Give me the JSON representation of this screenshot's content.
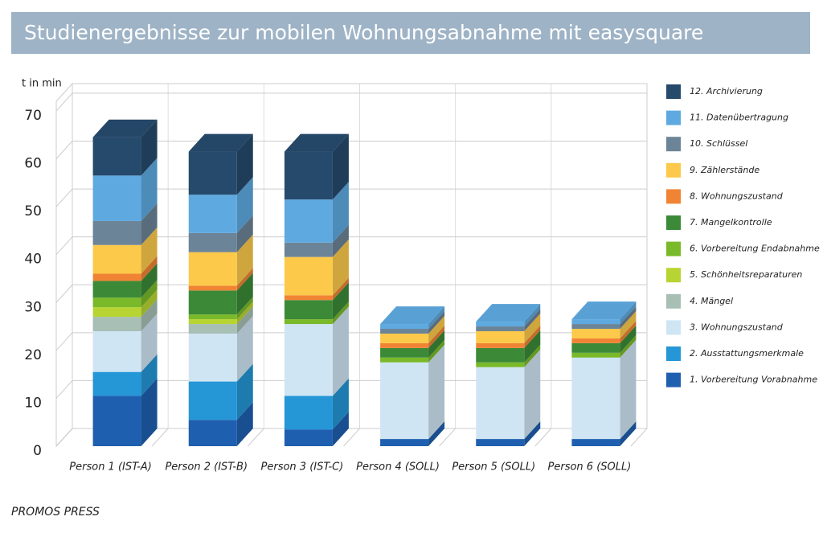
{
  "chart_data": {
    "type": "bar3d_stacked",
    "title": "Studienergebnisse zur mobilen Wohnungsabnahme mit easysquare",
    "y_label": "t in min",
    "footer": "PROMOS PRESS",
    "categories": [
      "Person 1 (IST-A)",
      "Person 2 (IST-B)",
      "Person 3 (IST-C)",
      "Person 4 (SOLL)",
      "Person 5 (SOLL)",
      "Person 6 (SOLL)"
    ],
    "ylim": [
      0,
      72
    ],
    "yticks": [
      0,
      10,
      20,
      30,
      40,
      50,
      60,
      70
    ],
    "grid": true,
    "series": [
      {
        "name": "1. Vorbereitung Vorabnahme",
        "color": "#1f5fb0",
        "values": [
          10.5,
          5.5,
          3.5,
          1.5,
          1.5,
          1.5
        ]
      },
      {
        "name": "2. Ausstattungsmerkmale",
        "color": "#2596d6",
        "values": [
          5,
          8,
          7,
          0,
          0,
          0
        ]
      },
      {
        "name": "3. Wohnungszustand",
        "color": "#cfe5f4",
        "values": [
          8.5,
          10,
          15,
          16,
          15,
          17
        ]
      },
      {
        "name": "4. Mängel",
        "color": "#a7bfb4",
        "values": [
          3,
          2,
          0,
          0,
          0,
          0
        ]
      },
      {
        "name": "5. Schönheitsreparaturen",
        "color": "#b8d432",
        "values": [
          2,
          1,
          0,
          0,
          0,
          0
        ]
      },
      {
        "name": "6. Vorbereitung Endabnahme",
        "color": "#7ab929",
        "values": [
          2,
          1,
          1,
          1,
          1,
          1
        ]
      },
      {
        "name": "7. Mangelkontrolle",
        "color": "#3c8a38",
        "values": [
          3.5,
          5,
          4,
          2,
          3,
          2
        ]
      },
      {
        "name": "8. Wohnungszustand",
        "color": "#f08434",
        "values": [
          1.5,
          1,
          1,
          1,
          1,
          1
        ]
      },
      {
        "name": "9. Zählerstände",
        "color": "#fdc94a",
        "values": [
          6,
          7,
          8,
          2,
          2.5,
          2
        ]
      },
      {
        "name": "10. Schlüssel",
        "color": "#6c8497",
        "values": [
          5,
          4,
          3,
          1,
          1,
          1
        ]
      },
      {
        "name": "11. Datenübertragung",
        "color": "#5ea9e0",
        "values": [
          9.5,
          8,
          9,
          1,
          1,
          1
        ]
      },
      {
        "name": "12. Archivierung",
        "color": "#264a6c",
        "values": [
          8,
          9,
          10,
          0,
          0,
          0
        ]
      }
    ]
  }
}
